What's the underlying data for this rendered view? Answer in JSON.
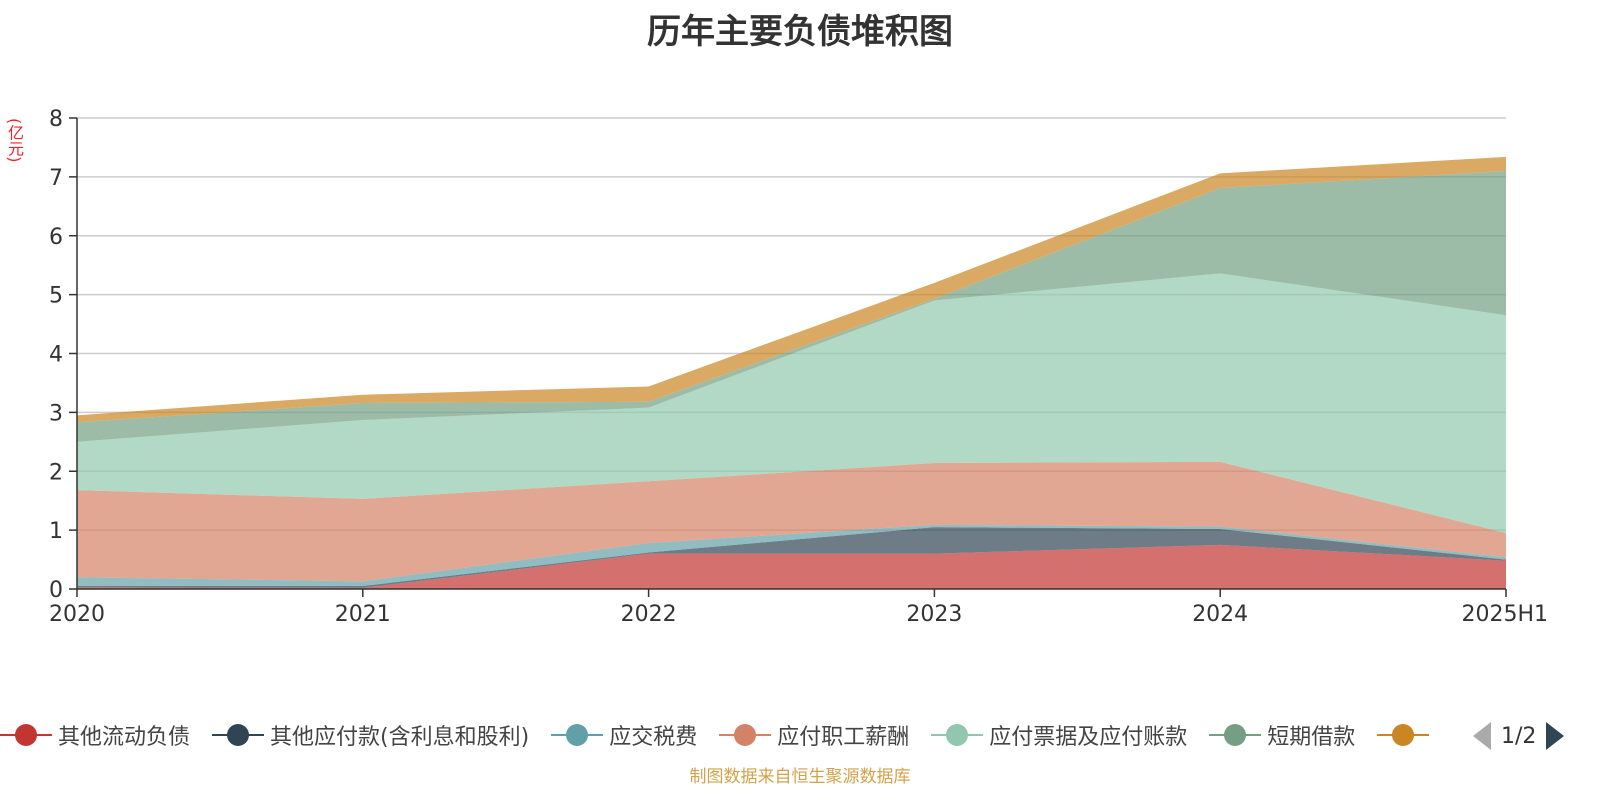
{
  "title": "历年主要负债堆积图",
  "unit": "(亿元)",
  "footer": "制图数据来自恒生聚源数据库",
  "pager": "1/2",
  "chart_data": {
    "type": "area",
    "stacked": true,
    "title": "历年主要负债堆积图",
    "ylabel": "(亿元)",
    "categories": [
      "2020",
      "2021",
      "2022",
      "2023",
      "2024",
      "2025H1"
    ],
    "ylim": [
      0,
      8
    ],
    "yticks": [
      0,
      1,
      2,
      3,
      4,
      5,
      6,
      7,
      8
    ],
    "grid": true,
    "legend_position": "bottom",
    "series": [
      {
        "name": "其他流动负债",
        "color": "#c23531",
        "values": [
          0.03,
          0.02,
          0.6,
          0.6,
          0.75,
          0.48
        ]
      },
      {
        "name": "其他应付款(含利息和股利)",
        "color": "#2f4554",
        "values": [
          0.02,
          0.03,
          0.02,
          0.45,
          0.27,
          0.02
        ]
      },
      {
        "name": "应交税费",
        "color": "#61a0a8",
        "values": [
          0.15,
          0.08,
          0.16,
          0.04,
          0.04,
          0.04
        ]
      },
      {
        "name": "应付职工薪酬",
        "color": "#d48265",
        "values": [
          1.48,
          1.4,
          1.05,
          1.05,
          1.1,
          0.41
        ]
      },
      {
        "name": "应付票据及应付账款",
        "color": "#91c7ae",
        "values": [
          0.82,
          1.34,
          1.25,
          2.76,
          3.2,
          3.7
        ]
      },
      {
        "name": "短期借款",
        "color": "#749f83",
        "values": [
          0.33,
          0.29,
          0.1,
          0.03,
          1.45,
          2.45
        ]
      },
      {
        "name": "",
        "color": "#ca8622",
        "values": [
          0.12,
          0.14,
          0.26,
          0.27,
          0.25,
          0.24
        ]
      }
    ]
  }
}
